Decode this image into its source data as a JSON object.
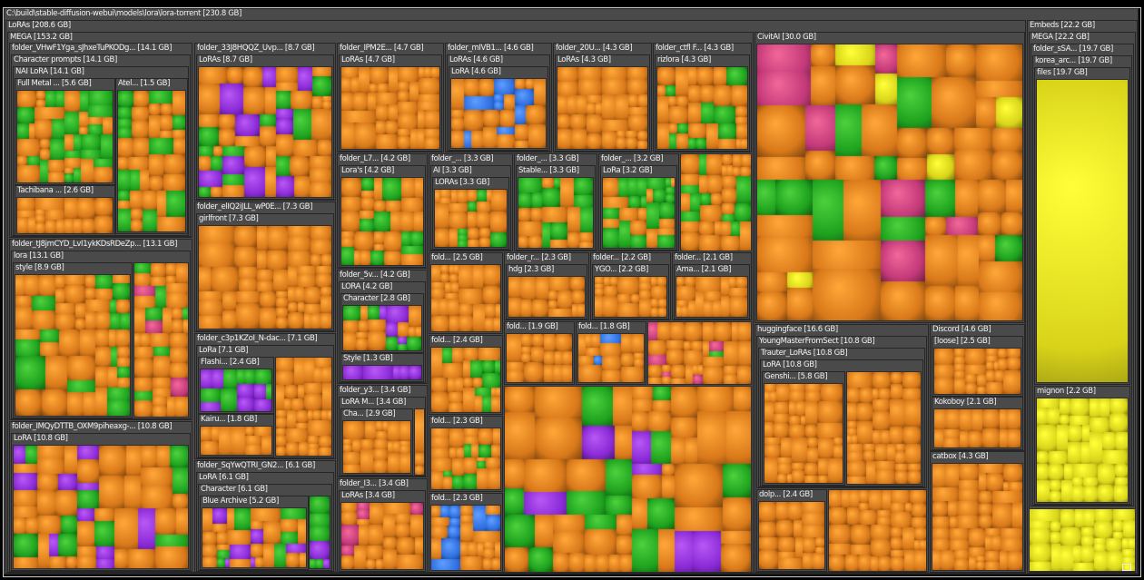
{
  "colors": {
    "window_bg": "#000000",
    "group_bg": "#4a4a4a",
    "header_text": "#f2f2f2",
    "tile_orange": "#d9791a",
    "tile_green": "#1fa31f",
    "tile_purple": "#8a2ad6",
    "tile_magenta": "#c43a7a",
    "tile_blue": "#2f6fe0",
    "tile_yellow": "#d9d41a"
  },
  "root": {
    "label": "C:\\build\\stable-diffusion-webui\\models\\lora\\lora-torrent [230.8 GB]"
  },
  "groups": {
    "loras": "LoRAs [208.6 GB]",
    "mega": "MEGA [153.2 GB]",
    "vhwfl": "folder_VHwF1Yga_sJhxeTuPKODg... [14.1 GB]",
    "char_prompts": "Character prompts [14.1 GB]",
    "nai_lora": "NAI LoRA [14.1 GB]",
    "fullmetal": "Full Metal ... [5.6 GB]",
    "atel": "Atel... [1.5 GB]",
    "tachibana": "Tachibana ... [2.6 GB]",
    "tl8jm": "folder_tJ8jmCYD_LvI1ykKDsRDeZp... [13.1 GB]",
    "tl8jm_lora": "lora [13.1 GB]",
    "style": "style [8.9 GB]",
    "imqy": "folder_IMQyDTTB_OXM9piheaxg-... [10.8 GB]",
    "imqy_lora": "LoRA [10.8 GB]",
    "f33j": "folder_33J8HQQZ_Uvp... [8.7 GB]",
    "f33j_loras": "LoRAs [8.7 GB]",
    "ellq": "folder_elIQ2iJLL_wP0E... [7.3 GB]",
    "girlfront": "girlfront [7.3 GB]",
    "c3p1": "folder_c3p1KZoI_N-dac... [7.1 GB]",
    "c3p1_lora": "LoRa [7.1 GB]",
    "flashi": "Flashi... [2.4 GB]",
    "kairu": "Kairu... [1.8 GB]",
    "sqyw": "folder_SqYwQTRI_GN2... [6.1 GB]",
    "sqyw_lora": "LoRA [6.1 GB]",
    "character61": "Character [6.1 GB]",
    "bluearchive": "Blue Archive [5.2 GB]",
    "ipm2e": "folder_IPM2E... [4.7 GB]",
    "ipm2e_loras": "LoRAs [4.7 GB]",
    "mivb": "folder_mIVB1... [4.6 GB]",
    "mivb_loras": "LoRAs [4.6 GB]",
    "mivb_lora": "LoRA [4.6 GB]",
    "f20u": "folder_20U... [4.3 GB]",
    "f20u_loras": "LoRAs [4.3 GB]",
    "ctfl": "folder_ctfl F... [4.3 GB]",
    "rizlora": "rizlora [4.3 GB]",
    "l7": "folder_L7... [4.2 GB]",
    "loras42": "Lora's [4.2 GB]",
    "ai_folder": "folder_... [3.3 GB]",
    "ai33": "AI [3.3 GB]",
    "loras33": "LORAs [3.3 GB]",
    "stable_folder": "folder_... [3.3 GB]",
    "stable": "Stable... [3.3 GB]",
    "lora32_folder": "folder_... [3.2 GB]",
    "lora32": "LoRa [3.2 GB]",
    "f5v": "folder_5v... [4.2 GB]",
    "f5v_lora": "LORA [4.2 GB]",
    "character28": "Character [2.8 GB]",
    "style13": "Style [1.3 GB]",
    "y3": "folder_y3... [3.4 GB]",
    "y3_lora": "LoRA M... [3.4 GB]",
    "cha29": "Cha... [2.9 GB]",
    "i3": "folder_I3... [3.4 GB]",
    "i3_loras": "LoRAs [3.4 GB]",
    "fold25": "fold... [2.5 GB]",
    "fold24": "fold... [2.4 GB]",
    "fold23a": "fold... [2.3 GB]",
    "fold23b": "fold... [2.3 GB]",
    "hdg_folder": "folder_r... [2.3 GB]",
    "hdg": "hdg [2.3 GB]",
    "ygo_folder": "folder... [2.2 GB]",
    "ygo": "YGO... [2.2 GB]",
    "ama_folder": "folder... [2.1 GB]",
    "ama": "Ama... [2.1 GB]",
    "fold19": "fold... [1.9 GB]",
    "fold18": "fold... [1.8 GB]",
    "civitai": "CivitAI [30.0 GB]",
    "huggingface": "huggingface [16.6 GB]",
    "youngmaster": "YoungMasterFromSect [10.8 GB]",
    "trauter": "Trauter_LoRAs [10.8 GB]",
    "trauter_lora": "LoRA [10.8 GB]",
    "genshi": "Genshi... [5.8 GB]",
    "dolp": "dolp... [2.4 GB]",
    "discord": "Discord [4.6 GB]",
    "loose": "[loose] [2.5 GB]",
    "kokoboy": "Kokoboy [2.1 GB]",
    "catbox": "catbox [4.3 GB]",
    "embeds": "Embeds [22.2 GB]",
    "embeds_mega": "MEGA [22.2 GB]",
    "ssa": "folder_sSA... [19.7 GB]",
    "korea": "korea_arc... [19.7 GB]",
    "files": "files [19.7 GB]",
    "mignon": "mignon [2.2 GB]"
  }
}
